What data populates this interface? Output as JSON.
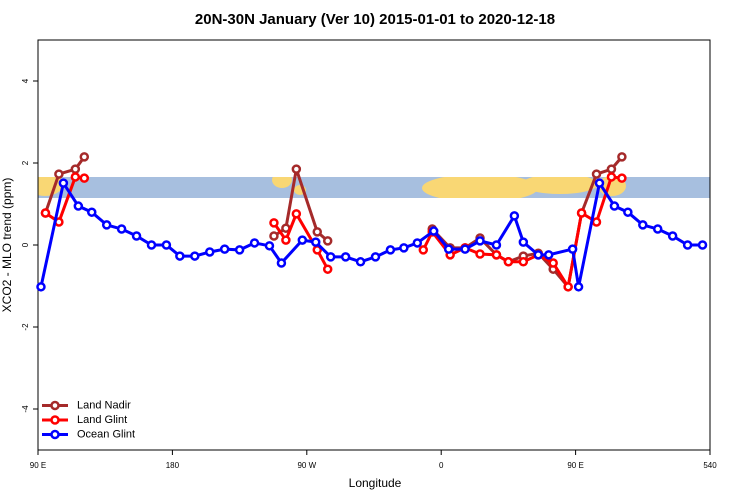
{
  "chart_data": {
    "type": "line",
    "title": "20N-30N January (Ver 10)   2015-01-01 to 2020-12-18",
    "x_label": "Longitude",
    "y_label": "XCO2 - MLO trend (ppm)",
    "xlim": [
      90,
      540
    ],
    "ylim": [
      -5,
      5
    ],
    "xticks": [
      {
        "value": 90,
        "label": "90 E"
      },
      180,
      {
        "value": 270,
        "label": "90 W"
      },
      {
        "value": 360,
        "label": "0"
      },
      {
        "value": 450,
        "label": "90 E"
      },
      540
    ],
    "yticks": [
      -4,
      -2,
      0,
      2,
      4
    ],
    "legend": "bottom-left",
    "series": [
      {
        "name": "Land Nadir",
        "color": "#a52a2a",
        "x": [
          95,
          104,
          115,
          121,
          null,
          248,
          256,
          263,
          277,
          284,
          null,
          354,
          366,
          376,
          386,
          397,
          405,
          415,
          425,
          435,
          445,
          454,
          464,
          474,
          481
        ],
        "values": [
          0.78,
          1.73,
          1.85,
          2.15,
          null,
          0.22,
          0.41,
          1.85,
          0.32,
          0.1,
          null,
          0.39,
          -0.07,
          -0.07,
          0.17,
          -0.24,
          -0.41,
          -0.27,
          -0.2,
          -0.59,
          -1.02,
          0.78,
          1.73,
          1.85,
          2.15
        ]
      },
      {
        "name": "Land Glint",
        "color": "#ff0000",
        "x": [
          95,
          104,
          115,
          121,
          null,
          248,
          256,
          263,
          277,
          284,
          null,
          348,
          354,
          366,
          376,
          386,
          397,
          405,
          415,
          425,
          435,
          445,
          454,
          464,
          474,
          481
        ],
        "values": [
          0.78,
          0.56,
          1.66,
          1.63,
          null,
          0.54,
          0.12,
          0.76,
          -0.12,
          -0.59,
          null,
          -0.12,
          0.32,
          -0.24,
          -0.07,
          -0.22,
          -0.24,
          -0.41,
          -0.41,
          -0.24,
          -0.44,
          -1.02,
          0.78,
          0.56,
          1.66,
          1.63
        ]
      },
      {
        "name": "Ocean Glint",
        "color": "#0000ff",
        "x": [
          92,
          107,
          117,
          126,
          136,
          146,
          156,
          166,
          176,
          185,
          195,
          205,
          215,
          225,
          235,
          245,
          253,
          267,
          276,
          286,
          296,
          306,
          316,
          326,
          335,
          344,
          355,
          365,
          376,
          386,
          397,
          409,
          415,
          425,
          432,
          448,
          452,
          466,
          476,
          485,
          495,
          505,
          515,
          525,
          535
        ],
        "values": [
          -1.02,
          1.51,
          0.95,
          0.8,
          0.49,
          0.39,
          0.22,
          0,
          0,
          -0.27,
          -0.27,
          -0.17,
          -0.1,
          -0.12,
          0.05,
          -0.02,
          -0.44,
          0.12,
          0.07,
          -0.29,
          -0.29,
          -0.41,
          -0.29,
          -0.12,
          -0.07,
          0.05,
          0.34,
          -0.1,
          -0.1,
          0.1,
          0,
          0.71,
          0.07,
          -0.24,
          -0.24,
          -0.1,
          -1.02,
          1.51,
          0.95,
          0.8,
          0.49,
          0.39,
          0.22,
          0,
          0
        ]
      }
    ]
  }
}
